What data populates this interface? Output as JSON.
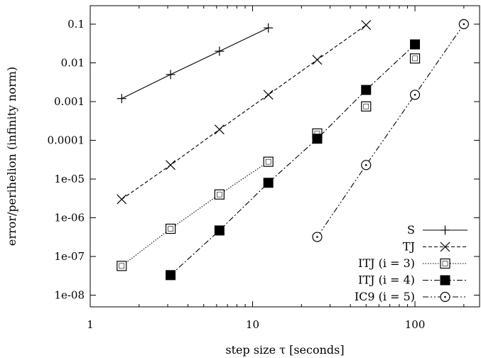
{
  "chart_data": {
    "type": "line",
    "xscale": "log",
    "yscale": "log",
    "xlim": [
      1,
      250
    ],
    "ylim": [
      5e-09,
      0.3
    ],
    "xlabel": "step size τ [seconds]",
    "ylabel": "error/perihelion (infinity norm)",
    "x_ticks": [
      {
        "value": 1,
        "label": "1"
      },
      {
        "value": 10,
        "label": "10"
      },
      {
        "value": 100,
        "label": "100"
      }
    ],
    "y_ticks": [
      {
        "value": 0.1,
        "label": "0.1"
      },
      {
        "value": 0.01,
        "label": "0.01"
      },
      {
        "value": 0.001,
        "label": "0.001"
      },
      {
        "value": 0.0001,
        "label": "0.0001"
      },
      {
        "value": 1e-05,
        "label": "1e-05"
      },
      {
        "value": 1e-06,
        "label": "1e-06"
      },
      {
        "value": 1e-07,
        "label": "1e-07"
      },
      {
        "value": 1e-08,
        "label": "1e-08"
      }
    ],
    "legend_position": "bottom-right",
    "series": [
      {
        "name": "S",
        "marker": "plus",
        "dash": "solid",
        "x": [
          1.5625,
          3.125,
          6.25,
          12.5
        ],
        "y": [
          0.0012,
          0.005,
          0.02,
          0.08
        ]
      },
      {
        "name": "TJ",
        "marker": "cross",
        "dash": "dashed",
        "x": [
          1.5625,
          3.125,
          6.25,
          12.5,
          25,
          50
        ],
        "y": [
          3e-06,
          2.3e-05,
          0.00019,
          0.0015,
          0.012,
          0.095
        ]
      },
      {
        "name": "ITJ (i = 3)",
        "marker": "open-square",
        "dash": "dotted",
        "x": [
          1.5625,
          3.125,
          6.25,
          12.5
        ],
        "y": [
          5.7e-08,
          5.2e-07,
          4e-06,
          2.8e-05
        ],
        "extra_points": {
          "x": [
            25,
            50,
            100
          ],
          "y": [
            0.00015,
            0.00075,
            0.013
          ]
        }
      },
      {
        "name": "ITJ (i = 4)",
        "marker": "filled-square",
        "dash": "dashdot",
        "x": [
          3.125,
          6.25,
          12.5,
          25,
          50,
          100
        ],
        "y": [
          3.3e-08,
          4.7e-07,
          8e-06,
          0.00011,
          0.002,
          0.03
        ]
      },
      {
        "name": "IC9 (i = 5)",
        "marker": "open-circle",
        "dash": "dashdotdot",
        "x": [
          25,
          50,
          100,
          200
        ],
        "y": [
          3.2e-07,
          2.3e-05,
          0.0015,
          0.1
        ]
      }
    ]
  }
}
